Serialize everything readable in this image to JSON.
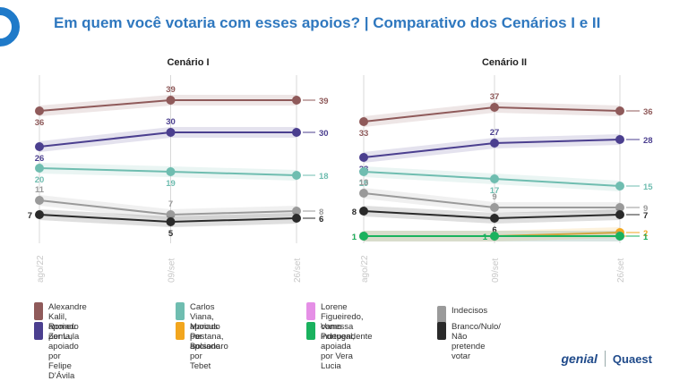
{
  "title": "Em quem você votaria com esses apoios? | Comparativo dos Cenários I e II",
  "colors": {
    "title": "#2f78bf",
    "kalil": "#8f5a5a",
    "zema": "#4b3f8f",
    "viana": "#6fbdb0",
    "lorene": "#e58fe6",
    "pestana": "#f2a61e",
    "vanessa": "#1ab25e",
    "indecisos": "#9a9a9a",
    "branco": "#2a2a2a"
  },
  "legend": [
    {
      "key": "kalil",
      "line1": "Alexandre Kalil,",
      "line2": "apoiado por Lula"
    },
    {
      "key": "zema",
      "line1": "Romeu Zema,",
      "line2": "apoiado por Felipe D'Ávila"
    },
    {
      "key": "viana",
      "line1": "Carlos Viana,",
      "line2": "apoiado por Bolsonaro"
    },
    {
      "key": "pestana",
      "line1": "Marcus Pestana,",
      "line2": "apoiado por Tebet"
    },
    {
      "key": "lorene",
      "line1": "Lorene Figueiredo,",
      "line2": "como independente"
    },
    {
      "key": "vanessa",
      "line1": "Vanessa Portugal,",
      "line2": "apoiada por Vera Lucia"
    },
    {
      "key": "indecisos",
      "line1": "Indecisos",
      "line2": ""
    },
    {
      "key": "branco",
      "line1": "Branco/Nulo/",
      "line2": "Não pretende votar"
    }
  ],
  "brand": {
    "genial": "genial",
    "quaest": "Quaest"
  },
  "chart_data": [
    {
      "type": "line",
      "title": "Cenário I",
      "x": [
        "ago/22",
        "09/set",
        "26/set"
      ],
      "ylim": [
        0,
        45
      ],
      "series": [
        {
          "name": "Alexandre Kalil, apoiado por Lula",
          "key": "kalil",
          "values": [
            36,
            39,
            39
          ]
        },
        {
          "name": "Romeu Zema, apoiado por Felipe D'Ávila",
          "key": "zema",
          "values": [
            26,
            30,
            30
          ]
        },
        {
          "name": "Carlos Viana, apoiado por Bolsonaro",
          "key": "viana",
          "values": [
            20,
            19,
            18
          ]
        },
        {
          "name": "Indecisos",
          "key": "indecisos",
          "values": [
            11,
            7,
            8
          ]
        },
        {
          "name": "Branco/Nulo/Não pretende votar",
          "key": "branco",
          "values": [
            7,
            5,
            6
          ]
        }
      ]
    },
    {
      "type": "line",
      "title": "Cenário II",
      "x": [
        "ago/22",
        "09/set",
        "26/set"
      ],
      "ylim": [
        0,
        45
      ],
      "series": [
        {
          "name": "Alexandre Kalil, apoiado por Lula",
          "key": "kalil",
          "values": [
            33,
            37,
            36
          ]
        },
        {
          "name": "Romeu Zema, apoiado por Felipe D'Ávila",
          "key": "zema",
          "values": [
            23,
            27,
            28
          ]
        },
        {
          "name": "Carlos Viana, apoiado por Bolsonaro",
          "key": "viana",
          "values": [
            19,
            17,
            15
          ]
        },
        {
          "name": "Indecisos",
          "key": "indecisos",
          "values": [
            13,
            9,
            9
          ]
        },
        {
          "name": "Branco/Nulo/Não pretende votar",
          "key": "branco",
          "values": [
            8,
            6,
            7
          ]
        },
        {
          "name": "Marcus Pestana, apoiado por Tebet",
          "key": "pestana",
          "values": [
            1,
            1,
            2
          ]
        },
        {
          "name": "Lorene Figueiredo, como independente",
          "key": "lorene",
          "values": [
            1,
            1,
            1
          ]
        },
        {
          "name": "Vanessa Portugal, apoiada por Vera Lucia",
          "key": "vanessa",
          "values": [
            1,
            1,
            1
          ]
        }
      ]
    }
  ]
}
